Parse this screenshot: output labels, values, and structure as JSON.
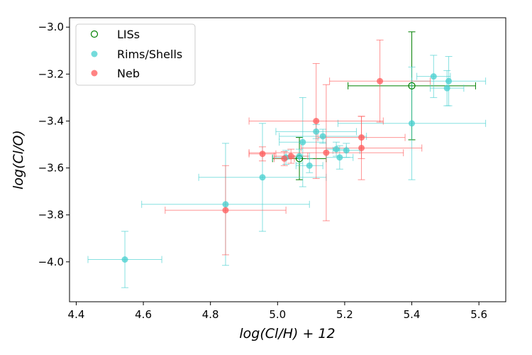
{
  "chart_data": {
    "type": "scatter",
    "title": "",
    "xlabel": "log(Cl/H) + 12",
    "ylabel": "log(Cl/O)",
    "xlim": [
      4.38,
      5.68
    ],
    "ylim": [
      -4.17,
      -2.96
    ],
    "xticks": [
      4.4,
      4.6,
      4.8,
      5.0,
      5.2,
      5.4,
      5.6
    ],
    "xtick_labels": [
      "4.4",
      "4.6",
      "4.8",
      "5.0",
      "5.2",
      "5.4",
      "5.6"
    ],
    "yticks": [
      -4.0,
      -3.8,
      -3.6,
      -3.4,
      -3.2,
      -3.0
    ],
    "ytick_labels": [
      "−4.0",
      "−3.8",
      "−3.6",
      "−3.4",
      "−3.2",
      "−3.0"
    ],
    "grid": false,
    "legend_position": "top-left",
    "series": [
      {
        "name": "LISs",
        "color": "#008000",
        "marker": "open-circle",
        "points": [
          {
            "x": 5.065,
            "y": -3.56,
            "xerr": 0.08,
            "yerr": 0.09
          },
          {
            "x": 5.4,
            "y": -3.25,
            "xerr": 0.19,
            "yerr": 0.23
          }
        ]
      },
      {
        "name": "Rims/Shells",
        "color": "#45cfcf",
        "marker": "filled-circle",
        "points": [
          {
            "x": 4.545,
            "y": -3.99,
            "xerr": 0.11,
            "yerr": 0.12
          },
          {
            "x": 4.845,
            "y": -3.755,
            "xerr": 0.25,
            "yerr": 0.26
          },
          {
            "x": 4.955,
            "y": -3.64,
            "xerr": 0.19,
            "yerr": 0.23
          },
          {
            "x": 5.025,
            "y": -3.555,
            "xerr": 0.04,
            "yerr": 0.03
          },
          {
            "x": 5.065,
            "y": -3.55,
            "xerr": 0.03,
            "yerr": 0.03
          },
          {
            "x": 5.075,
            "y": -3.49,
            "xerr": 0.07,
            "yerr": 0.19
          },
          {
            "x": 5.095,
            "y": -3.59,
            "xerr": 0.04,
            "yerr": 0.03
          },
          {
            "x": 5.115,
            "y": -3.445,
            "xerr": 0.12,
            "yerr": 0.03
          },
          {
            "x": 5.135,
            "y": -3.465,
            "xerr": 0.13,
            "yerr": 0.03
          },
          {
            "x": 5.175,
            "y": -3.52,
            "xerr": 0.03,
            "yerr": 0.03
          },
          {
            "x": 5.185,
            "y": -3.555,
            "xerr": 0.04,
            "yerr": 0.05
          },
          {
            "x": 5.205,
            "y": -3.525,
            "xerr": 0.04,
            "yerr": 0.03
          },
          {
            "x": 5.4,
            "y": -3.41,
            "xerr": 0.22,
            "yerr": 0.24
          },
          {
            "x": 5.465,
            "y": -3.21,
            "xerr": 0.05,
            "yerr": 0.09
          },
          {
            "x": 5.505,
            "y": -3.26,
            "xerr": 0.05,
            "yerr": 0.075
          },
          {
            "x": 5.51,
            "y": -3.23,
            "xerr": 0.11,
            "yerr": 0.105
          }
        ]
      },
      {
        "name": "Neb",
        "color": "#ff5a5a",
        "marker": "filled-circle",
        "points": [
          {
            "x": 4.845,
            "y": -3.78,
            "xerr": 0.18,
            "yerr": 0.19
          },
          {
            "x": 4.955,
            "y": -3.54,
            "xerr": 0.04,
            "yerr": 0.03
          },
          {
            "x": 5.02,
            "y": -3.56,
            "xerr": 0.03,
            "yerr": 0.03
          },
          {
            "x": 5.04,
            "y": -3.55,
            "xerr": 0.05,
            "yerr": 0.03
          },
          {
            "x": 5.115,
            "y": -3.4,
            "xerr": 0.2,
            "yerr": 0.245
          },
          {
            "x": 5.145,
            "y": -3.535,
            "xerr": 0.23,
            "yerr": 0.29
          },
          {
            "x": 5.25,
            "y": -3.47,
            "xerr": 0.13,
            "yerr": 0.09
          },
          {
            "x": 5.25,
            "y": -3.515,
            "xerr": 0.18,
            "yerr": 0.135
          },
          {
            "x": 5.305,
            "y": -3.23,
            "xerr": 0.15,
            "yerr": 0.175
          }
        ]
      }
    ]
  }
}
